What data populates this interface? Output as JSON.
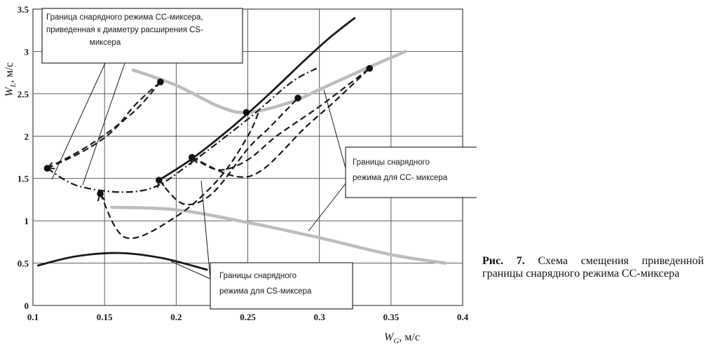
{
  "chart_data": {
    "type": "line",
    "xlabel": "W",
    "xlabel_sub": "G",
    "xlabel_unit": ", м/с",
    "ylabel": "W",
    "ylabel_sub": "L",
    "ylabel_unit": ", м/с",
    "xlim": [
      0.1,
      0.4
    ],
    "ylim": [
      0,
      3.5
    ],
    "xticks": [
      "0.1",
      "0.15",
      "0.2",
      "0.25",
      "0.3",
      "0.35",
      "0.4"
    ],
    "yticks": [
      "0",
      "0.5",
      "1",
      "1.5",
      "2",
      "2.5",
      "3",
      "3.5"
    ],
    "grid": true,
    "series": [
      {
        "style": "thick-solid",
        "points": [
          [
            0.103,
            0.47
          ],
          [
            0.13,
            0.58
          ],
          [
            0.16,
            0.62
          ],
          [
            0.19,
            0.56
          ],
          [
            0.222,
            0.42
          ]
        ]
      },
      {
        "style": "gray-band",
        "points": [
          [
            0.17,
            2.78
          ],
          [
            0.2,
            2.6
          ],
          [
            0.23,
            2.35
          ],
          [
            0.25,
            2.28
          ],
          [
            0.28,
            2.4
          ],
          [
            0.3,
            2.55
          ],
          [
            0.33,
            2.78
          ],
          [
            0.36,
            3.0
          ]
        ]
      },
      {
        "style": "gray-band",
        "points": [
          [
            0.155,
            1.16
          ],
          [
            0.2,
            1.13
          ],
          [
            0.25,
            0.98
          ],
          [
            0.3,
            0.8
          ],
          [
            0.35,
            0.6
          ],
          [
            0.388,
            0.5
          ]
        ]
      },
      {
        "style": "thick-solid",
        "points": [
          [
            0.188,
            1.48
          ],
          [
            0.21,
            1.72
          ],
          [
            0.235,
            2.05
          ],
          [
            0.26,
            2.42
          ],
          [
            0.29,
            2.9
          ],
          [
            0.307,
            3.16
          ],
          [
            0.325,
            3.4
          ]
        ]
      },
      {
        "style": "dash-dot",
        "points": [
          [
            0.11,
            1.62
          ],
          [
            0.13,
            1.42
          ],
          [
            0.16,
            1.34
          ],
          [
            0.185,
            1.4
          ],
          [
            0.21,
            1.68
          ],
          [
            0.25,
            2.2
          ],
          [
            0.28,
            2.63
          ],
          [
            0.298,
            2.8
          ]
        ]
      },
      {
        "style": "dashed",
        "points": [
          [
            0.11,
            1.62
          ],
          [
            0.14,
            1.9
          ],
          [
            0.17,
            2.28
          ],
          [
            0.189,
            2.64
          ]
        ]
      },
      {
        "style": "dashed",
        "points": [
          [
            0.11,
            1.62
          ],
          [
            0.135,
            1.82
          ],
          [
            0.155,
            2.05
          ],
          [
            0.172,
            2.38
          ],
          [
            0.189,
            2.64
          ]
        ]
      },
      {
        "style": "dashed",
        "points": [
          [
            0.147,
            1.32
          ],
          [
            0.165,
            0.8
          ],
          [
            0.2,
            1.05
          ],
          [
            0.23,
            1.5
          ],
          [
            0.25,
            2.0
          ],
          [
            0.258,
            2.3
          ]
        ]
      },
      {
        "style": "dashed",
        "points": [
          [
            0.188,
            1.48
          ],
          [
            0.205,
            1.2
          ],
          [
            0.225,
            1.32
          ],
          [
            0.25,
            1.85
          ],
          [
            0.265,
            2.1
          ],
          [
            0.285,
            2.45
          ]
        ]
      },
      {
        "style": "dashed",
        "points": [
          [
            0.211,
            1.75
          ],
          [
            0.24,
            1.53
          ],
          [
            0.26,
            1.6
          ],
          [
            0.29,
            2.1
          ],
          [
            0.31,
            2.4
          ],
          [
            0.335,
            2.8
          ]
        ]
      },
      {
        "style": "dashed",
        "points": [
          [
            0.211,
            1.75
          ],
          [
            0.23,
            1.6
          ],
          [
            0.25,
            1.72
          ],
          [
            0.27,
            2.0
          ],
          [
            0.3,
            2.35
          ],
          [
            0.335,
            2.8
          ]
        ]
      }
    ],
    "markers": [
      [
        0.11,
        1.62
      ],
      [
        0.147,
        1.32
      ],
      [
        0.189,
        2.64
      ],
      [
        0.188,
        1.48
      ],
      [
        0.211,
        1.75
      ],
      [
        0.249,
        2.28
      ],
      [
        0.285,
        2.45
      ],
      [
        0.335,
        2.8
      ]
    ],
    "annotations": [
      {
        "lines": [
          "Граница снарядного режима СС-миксера,",
          "приведенная к диаметру расширения CS-",
          "миксера"
        ]
      },
      {
        "lines": [
          "Границы снарядного",
          "режима для СС- миксера"
        ]
      },
      {
        "lines": [
          "Границы снарядного",
          "режима для CS-миксера"
        ]
      }
    ]
  },
  "caption": {
    "label": "Рис. 7.",
    "text": " Схема смещения приведенной границы снарядного режима СС-миксера"
  }
}
